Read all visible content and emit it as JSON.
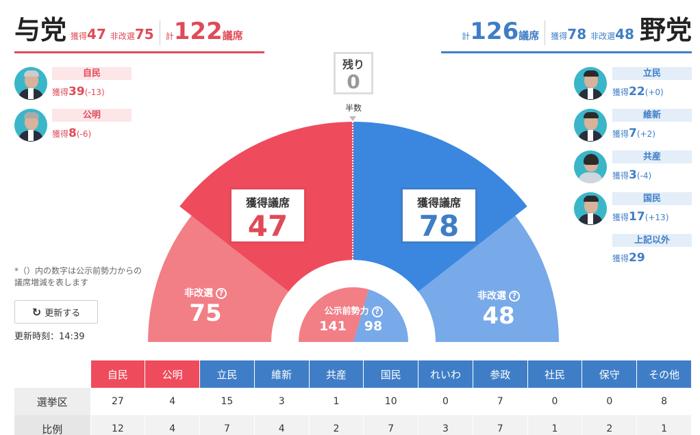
{
  "ruling": {
    "title": "与党",
    "won_label": "獲得",
    "won": "47",
    "unelected_label": "非改選",
    "unelected": "75",
    "total_label": "計",
    "total": "122",
    "seats_unit": "議席"
  },
  "opposition": {
    "title": "野党",
    "won_label": "獲得",
    "won": "78",
    "unelected_label": "非改選",
    "unelected": "48",
    "total_label": "計",
    "total": "126",
    "seats_unit": "議席"
  },
  "ruling_parties": [
    {
      "name": "自民",
      "label": "獲得",
      "seats": "39",
      "change": "(-13)"
    },
    {
      "name": "公明",
      "label": "獲得",
      "seats": "8",
      "change": "(-6)"
    }
  ],
  "opposition_parties": [
    {
      "name": "立民",
      "label": "獲得",
      "seats": "22",
      "change": "(+0)"
    },
    {
      "name": "維新",
      "label": "獲得",
      "seats": "7",
      "change": "(+2)"
    },
    {
      "name": "共産",
      "label": "獲得",
      "seats": "3",
      "change": "(-4)"
    },
    {
      "name": "国民",
      "label": "獲得",
      "seats": "17",
      "change": "(+13)"
    },
    {
      "name": "上記以外",
      "label": "獲得",
      "seats": "29",
      "change": ""
    }
  ],
  "center": {
    "remaining_label": "残り",
    "remaining": "0",
    "half_label": "半数",
    "won_label": "獲得議席",
    "ruling_won": "47",
    "opposition_won": "78",
    "unelected_label": "非改選",
    "ruling_unelected": "75",
    "opposition_unelected": "48",
    "prior_label": "公示前勢力",
    "ruling_prior": "141",
    "opposition_prior": "98",
    "help_icon": "question-circle-icon"
  },
  "colors": {
    "ruling_dark": "#ee4b5c",
    "ruling_light": "#f27e86",
    "opp_dark": "#3b87e0",
    "opp_light": "#78a9e8"
  },
  "note": {
    "line1": "*（）内の数字は公示前勢力からの",
    "line2": "議席増減を表します"
  },
  "refresh": {
    "icon": "refresh-icon",
    "label": "更新する"
  },
  "update": {
    "label": "更新時刻：",
    "time": "14:39"
  },
  "table": {
    "headers": [
      "自民",
      "公明",
      "立民",
      "維新",
      "共産",
      "国民",
      "れいわ",
      "参政",
      "社民",
      "保守",
      "その他"
    ],
    "header_colors": [
      "#ee4b5c",
      "#ee4b5c",
      "#3f7ec6",
      "#3f7ec6",
      "#3f7ec6",
      "#3f7ec6",
      "#3f7ec6",
      "#3f7ec6",
      "#3f7ec6",
      "#3f7ec6",
      "#3f7ec6"
    ],
    "rows": [
      {
        "label": "選挙区",
        "values": [
          "27",
          "4",
          "15",
          "3",
          "1",
          "10",
          "0",
          "7",
          "0",
          "0",
          "8"
        ]
      },
      {
        "label": "比例",
        "values": [
          "12",
          "4",
          "7",
          "4",
          "2",
          "7",
          "3",
          "7",
          "1",
          "2",
          "1"
        ]
      }
    ]
  }
}
